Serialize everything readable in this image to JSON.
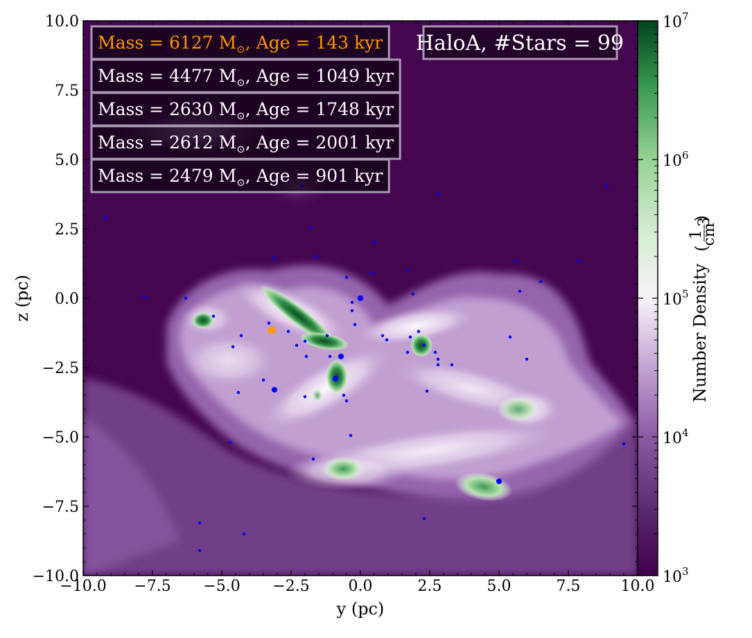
{
  "chart_data": {
    "type": "heatmap",
    "title": "HaloA, #Stars = 99",
    "xlabel": "y  (pc)",
    "ylabel": "z  (pc)",
    "xlim": [
      -10,
      10
    ],
    "ylim": [
      -10,
      10
    ],
    "x_ticks": [
      -10,
      -7.5,
      -5,
      -2.5,
      0,
      2.5,
      5,
      7.5,
      10
    ],
    "y_ticks": [
      -10,
      -7.5,
      -5,
      -2.5,
      0,
      2.5,
      5,
      7.5,
      10
    ],
    "x_tick_labels": [
      "−10.0",
      "−7.5",
      "−5.0",
      "−2.5",
      "0.0",
      "2.5",
      "5.0",
      "7.5",
      "10.0"
    ],
    "y_tick_labels": [
      "−10.0",
      "−7.5",
      "−5.0",
      "−2.5",
      "0.0",
      "2.5",
      "5.0",
      "7.5",
      "10.0"
    ],
    "colorbar": {
      "label": "Number Density",
      "unit_numerator": "1",
      "unit_denominator": "cm",
      "unit_exponent": "3",
      "scale": "log",
      "range": [
        1000,
        10000000
      ],
      "ticks": [
        {
          "base": "10",
          "exp": "3",
          "value": 1000
        },
        {
          "base": "10",
          "exp": "4",
          "value": 10000
        },
        {
          "base": "10",
          "exp": "5",
          "value": 100000
        },
        {
          "base": "10",
          "exp": "6",
          "value": 1000000
        },
        {
          "base": "10",
          "exp": "7",
          "value": 10000000
        }
      ],
      "colormap": [
        "#43064f",
        "#ffffff",
        "#005a20"
      ]
    },
    "legend_boxes": [
      {
        "mass": "6127",
        "age": "143",
        "color": "#ff9900"
      },
      {
        "mass": "4477",
        "age": "1049",
        "color": "#ffffff"
      },
      {
        "mass": "2630",
        "age": "1748",
        "color": "#ffffff"
      },
      {
        "mass": "2612",
        "age": "2001",
        "color": "#ffffff"
      },
      {
        "mass": "2479",
        "age": "901",
        "color": "#ffffff"
      }
    ],
    "legend_text": {
      "mass_prefix": "Mass = ",
      "mass_unit": " M",
      "sun_symbol": "⊙",
      "age_prefix": ", Age = ",
      "age_unit": " kyr"
    },
    "highlight_star": {
      "y": -3.2,
      "z": -1.15,
      "color": "#ff9900"
    },
    "stars": [
      [
        -9.2,
        2.9
      ],
      [
        -7.8,
        0.05
      ],
      [
        -6.3,
        0.0
      ],
      [
        -5.3,
        -0.65
      ],
      [
        -4.6,
        -1.75
      ],
      [
        -4.3,
        -1.35
      ],
      [
        -4.4,
        -3.4
      ],
      [
        -3.5,
        -2.95
      ],
      [
        -3.1,
        -3.3
      ],
      [
        -3.1,
        1.45
      ],
      [
        -4.7,
        -5.2
      ],
      [
        -5.8,
        -8.1
      ],
      [
        -5.8,
        -9.1
      ],
      [
        -4.2,
        -8.5
      ],
      [
        -1.8,
        2.55
      ],
      [
        -1.6,
        1.5
      ],
      [
        -2.1,
        4.05
      ],
      [
        -1.2,
        -1.35
      ],
      [
        -1.1,
        -2.1
      ],
      [
        -0.7,
        -2.15
      ],
      [
        -0.9,
        -2.9
      ],
      [
        -0.6,
        -3.5
      ],
      [
        -0.5,
        -3.7
      ],
      [
        -0.3,
        -0.15
      ],
      [
        -0.3,
        -0.45
      ],
      [
        0.0,
        0.0
      ],
      [
        -0.2,
        -0.95
      ],
      [
        -0.5,
        0.75
      ],
      [
        0.4,
        0.9
      ],
      [
        0.5,
        2.0
      ],
      [
        -0.35,
        -4.95
      ],
      [
        -1.7,
        -5.8
      ],
      [
        0.8,
        -1.35
      ],
      [
        0.95,
        -1.5
      ],
      [
        1.7,
        1.0
      ],
      [
        1.9,
        0.15
      ],
      [
        1.7,
        -1.95
      ],
      [
        1.8,
        -1.4
      ],
      [
        2.1,
        -1.2
      ],
      [
        2.3,
        -1.7
      ],
      [
        2.7,
        -1.95
      ],
      [
        2.8,
        -2.2
      ],
      [
        2.8,
        -2.4
      ],
      [
        3.3,
        -2.4
      ],
      [
        2.4,
        -3.35
      ],
      [
        2.8,
        3.75
      ],
      [
        5.4,
        -1.4
      ],
      [
        5.75,
        0.25
      ],
      [
        6.0,
        -2.2
      ],
      [
        6.5,
        0.6
      ],
      [
        5.6,
        1.35
      ],
      [
        7.9,
        1.35
      ],
      [
        8.9,
        4.05
      ],
      [
        9.5,
        -5.25
      ],
      [
        5.0,
        -6.6
      ],
      [
        2.3,
        -7.95
      ],
      [
        -2.0,
        -1.55
      ],
      [
        -1.95,
        -2.1
      ],
      [
        -2.3,
        -1.7
      ],
      [
        -2.6,
        -1.2
      ],
      [
        -3.3,
        -0.9
      ],
      [
        -2.0,
        -3.55
      ]
    ],
    "big_stars": [
      [
        -0.7,
        -2.1
      ],
      [
        -3.1,
        -3.3
      ],
      [
        5.0,
        -6.6
      ],
      [
        -0.9,
        -2.9
      ],
      [
        0.0,
        0.0
      ]
    ]
  }
}
